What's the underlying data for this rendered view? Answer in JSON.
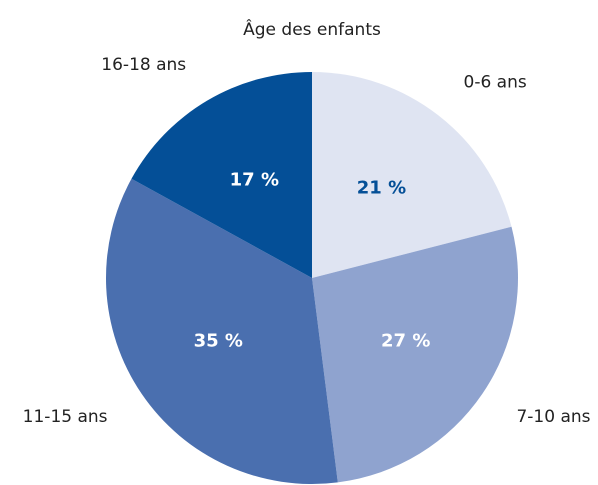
{
  "chart_data": {
    "type": "pie",
    "title": "Âge des enfants",
    "categories": [
      "0-6 ans",
      "7-10 ans",
      "11-15 ans",
      "16-18 ans"
    ],
    "values": [
      21,
      27,
      35,
      17
    ],
    "value_labels": [
      "21 %",
      "27 %",
      "35 %",
      "17 %"
    ],
    "colors": [
      "#dfe4f2",
      "#8fa3cf",
      "#4a6faf",
      "#044f97"
    ]
  }
}
